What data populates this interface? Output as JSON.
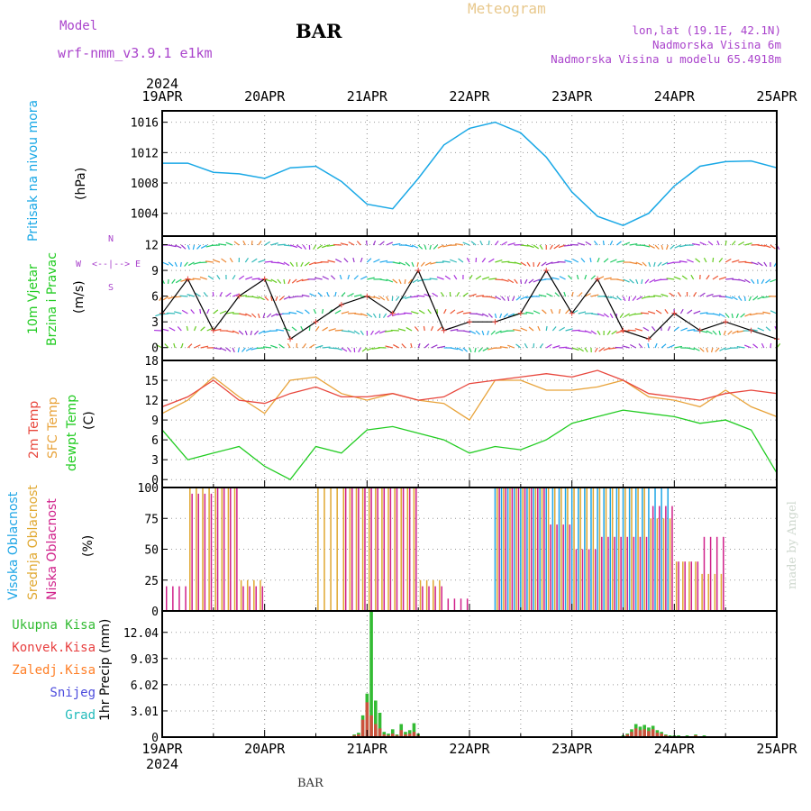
{
  "header": {
    "model_label": "Model",
    "model_name": "wrf-nmm_v3.9.1  e1km",
    "title": "BAR",
    "subtitle": "Meteogram",
    "location_lines": [
      "lon,lat (19.1E, 42.1N)",
      "Nadmorska Visina 6m",
      "Nadmorska Visina u modelu 65.4918m"
    ],
    "footer_station": "BAR",
    "credit": "made by Angel"
  },
  "colors": {
    "pressure": "#19a8e6",
    "temp2m": "#e8473d",
    "sfc_temp": "#e8a33a",
    "dewpt": "#22cc22",
    "high_cloud": "#1fa6e6",
    "mid_cloud": "#e0a830",
    "low_cloud": "#d0208a",
    "total_precip": "#33bb33",
    "conv_precip": "#e84040",
    "frz_precip": "#ff7f27",
    "snow": "#4c4cdd",
    "graupel": "#22bbbb",
    "purple_label": "#aa44cc"
  },
  "time_axis": {
    "year_top": "2024",
    "year_bottom": "2024",
    "day_labels": [
      "19APR",
      "20APR",
      "21APR",
      "22APR",
      "23APR",
      "24APR",
      "25APR"
    ]
  },
  "panels": {
    "pressure": {
      "ylabel": "Pritisak na nivou mora",
      "unit": "(hPa)"
    },
    "wind": {
      "ylabel_1": "10m Vjetar",
      "ylabel_2": "Brzina i Pravac",
      "unit": "(m/s)",
      "compass": [
        "N",
        "S",
        "W",
        "E"
      ]
    },
    "temp": {
      "label_1": "2m Temp",
      "label_2": "SFC Temp",
      "label_3": "dewpt Temp",
      "unit": "(C)"
    },
    "cloud": {
      "label_1": "Visoka Oblacnost",
      "label_2": "Srednja Oblacnost",
      "label_3": "Niska Oblacnost",
      "unit": "(%)"
    },
    "precip": {
      "legend": [
        "Ukupna Kisa",
        "Konvek.Kisa",
        "Zaledj.Kisa",
        "Snijeg",
        "Grad"
      ],
      "ylabel": "1hr Precip (mm)"
    }
  },
  "chart_data": [
    {
      "type": "line",
      "name": "pressure",
      "x": [
        0,
        6,
        12,
        18,
        24,
        30,
        36,
        42,
        48,
        54,
        60,
        66,
        72,
        78,
        84,
        90,
        96,
        102,
        108,
        114,
        120,
        126,
        132,
        138,
        144
      ],
      "series": [
        {
          "values": [
            1010.6,
            1010.6,
            1009.4,
            1009.2,
            1008.6,
            1010.0,
            1010.2,
            1008.2,
            1005.2,
            1004.6,
            1008.6,
            1013.0,
            1015.2,
            1016.0,
            1014.6,
            1011.4,
            1006.8,
            1003.6,
            1002.4,
            1004.0,
            1007.6,
            1010.2,
            1010.8,
            1010.9,
            1010.0
          ]
        }
      ],
      "y_ticks": [
        1004,
        1008,
        1012,
        1016
      ],
      "ylim": [
        1001,
        1017.5
      ]
    },
    {
      "type": "line",
      "name": "wind_speed",
      "x": [
        0,
        6,
        12,
        18,
        24,
        30,
        36,
        42,
        48,
        54,
        60,
        66,
        72,
        78,
        84,
        90,
        96,
        102,
        108,
        114,
        120,
        126,
        132,
        138,
        144
      ],
      "series": [
        {
          "values": [
            4,
            8,
            2,
            6,
            8,
            1,
            3,
            5,
            6,
            4,
            9,
            2,
            3,
            3,
            4,
            9,
            4,
            8,
            2,
            1,
            4,
            2,
            3,
            2,
            1
          ]
        }
      ],
      "y_ticks": [
        0,
        3,
        6,
        9,
        12
      ],
      "ylim": [
        -1.5,
        13
      ]
    },
    {
      "type": "line",
      "name": "temperature",
      "x": [
        0,
        6,
        12,
        18,
        24,
        30,
        36,
        42,
        48,
        54,
        60,
        66,
        72,
        78,
        84,
        90,
        96,
        102,
        108,
        114,
        120,
        126,
        132,
        138,
        144
      ],
      "series": [
        {
          "name": "2m Temp",
          "values": [
            11.0,
            12.5,
            15.0,
            12.0,
            11.5,
            13.0,
            14.0,
            12.5,
            12.5,
            13.0,
            12.0,
            12.5,
            14.5,
            15.0,
            15.5,
            16.0,
            15.5,
            16.5,
            15.0,
            13.0,
            12.5,
            12.0,
            13.0,
            13.5,
            13.0
          ]
        },
        {
          "name": "SFC Temp",
          "values": [
            10.0,
            12.0,
            15.5,
            12.5,
            10.0,
            15.0,
            15.5,
            13.0,
            12.0,
            13.0,
            12.0,
            11.5,
            9.0,
            15.0,
            15.0,
            13.5,
            13.5,
            14.0,
            15.0,
            12.5,
            12.0,
            11.0,
            13.5,
            11.0,
            9.5
          ]
        },
        {
          "name": "dewpt Temp",
          "values": [
            7.5,
            3.0,
            4.0,
            5.0,
            2.0,
            0.0,
            5.0,
            4.0,
            7.5,
            8.0,
            7.0,
            6.0,
            4.0,
            5.0,
            4.5,
            6.0,
            8.5,
            9.5,
            10.5,
            10.0,
            9.5,
            8.5,
            9.0,
            7.5,
            1.0
          ]
        }
      ],
      "y_ticks": [
        0,
        3,
        6,
        9,
        12,
        15,
        18
      ],
      "ylim": [
        -1.2,
        18
      ]
    },
    {
      "type": "bar",
      "name": "cloud_cover",
      "x": [
        0,
        6,
        12,
        18,
        24,
        30,
        36,
        42,
        48,
        54,
        60,
        66,
        72,
        78,
        84,
        90,
        96,
        102,
        108,
        114,
        120,
        126,
        132,
        138,
        144
      ],
      "series": [
        {
          "name": "Visoka Oblacnost",
          "values": [
            0,
            0,
            0,
            0,
            0,
            0,
            0,
            0,
            0,
            0,
            0,
            0,
            0,
            100,
            100,
            100,
            100,
            100,
            100,
            100,
            0,
            0,
            0,
            0,
            80
          ]
        },
        {
          "name": "Srednja Oblacnost",
          "values": [
            0,
            100,
            100,
            25,
            0,
            0,
            100,
            100,
            100,
            100,
            25,
            0,
            0,
            100,
            100,
            100,
            100,
            100,
            100,
            75,
            40,
            30,
            0,
            0,
            100
          ]
        },
        {
          "name": "Niska Oblacnost",
          "values": [
            20,
            95,
            100,
            20,
            0,
            0,
            0,
            100,
            100,
            100,
            20,
            10,
            0,
            100,
            100,
            70,
            50,
            60,
            60,
            85,
            40,
            60,
            0,
            0,
            100
          ]
        }
      ],
      "y_ticks": [
        0,
        25,
        50,
        75,
        100
      ],
      "ylim": [
        0,
        100
      ]
    },
    {
      "type": "bar",
      "name": "precipitation",
      "x": [
        45,
        46,
        47,
        48,
        49,
        50,
        51,
        52,
        53,
        54,
        55,
        56,
        57,
        58,
        59,
        60,
        108,
        109,
        110,
        111,
        112,
        113,
        114,
        115,
        116,
        117,
        118,
        119,
        120,
        121,
        122,
        123,
        124,
        125,
        126,
        127,
        128
      ],
      "series": [
        {
          "name": "Ukupna Kisa",
          "values": [
            0.3,
            0.5,
            2.5,
            5.0,
            14.5,
            4.2,
            2.8,
            0.6,
            0.4,
            0.9,
            0.3,
            1.5,
            0.6,
            0.8,
            1.6,
            0.4,
            0.2,
            0.4,
            0.9,
            1.5,
            1.2,
            1.4,
            1.1,
            1.3,
            0.8,
            0.6,
            0.3,
            0.2,
            0.2,
            0.2,
            0.1,
            0.2,
            0.1,
            0.3,
            0.1,
            0.2,
            0.1
          ]
        },
        {
          "name": "Konvek.Kisa",
          "values": [
            0.2,
            0.3,
            2.0,
            4.0,
            2.5,
            1.5,
            1.0,
            0.3,
            0.2,
            0.4,
            0.2,
            0.8,
            0.3,
            0.4,
            0.6,
            0.2,
            0.1,
            0.3,
            0.6,
            1.0,
            0.8,
            0.9,
            0.7,
            0.9,
            0.5,
            0.4,
            0.2,
            0.1,
            0.1,
            0.1,
            0.1,
            0.1,
            0.1,
            0.2,
            0.1,
            0.1,
            0.1
          ]
        }
      ],
      "y_ticks": [
        0,
        3.01,
        6.02,
        9.03,
        12.04
      ],
      "ylim": [
        0,
        14.5
      ]
    }
  ]
}
